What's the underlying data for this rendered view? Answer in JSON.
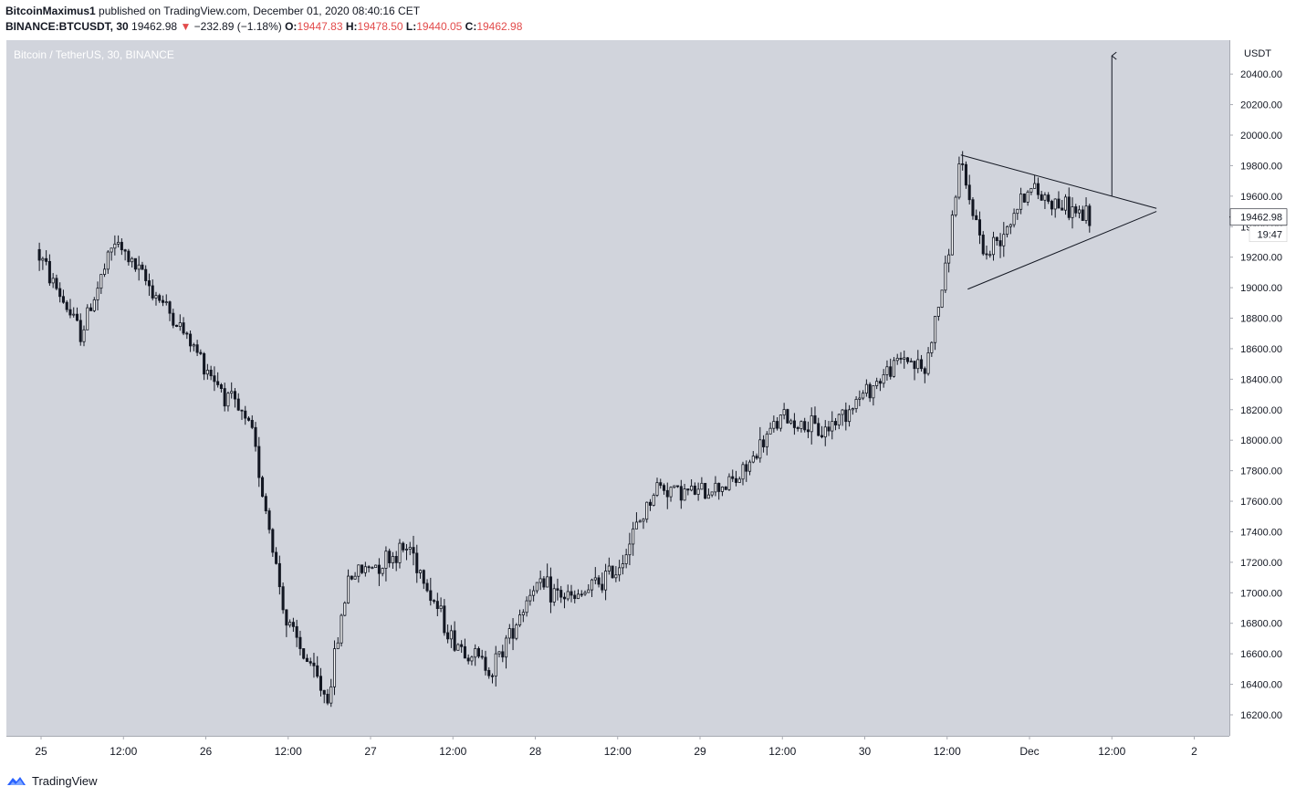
{
  "header": {
    "author": "BitcoinMaximus1",
    "published_text": "published on TradingView.com, December 01, 2020 08:40:16 CET",
    "symbol": "BINANCE:BTCUSDT, 30",
    "last_price": "19462.98",
    "change_arrow": "▼",
    "change": "−232.89 (−1.18%)",
    "open_label": "O:",
    "open": "19447.83",
    "high_label": "H:",
    "high": "19478.50",
    "low_label": "L:",
    "low": "19440.05",
    "close_label": "C:",
    "close": "19462.98"
  },
  "chart_legend": "Bitcoin / TetherUS, 30, BINANCE",
  "price_axis": {
    "unit": "USDT",
    "labels": [
      "20400.00",
      "20200.00",
      "20000.00",
      "19800.00",
      "19600.00",
      "19400.00",
      "19200.00",
      "19000.00",
      "18800.00",
      "18600.00",
      "18400.00",
      "18200.00",
      "18000.00",
      "17800.00",
      "17600.00",
      "17400.00",
      "17200.00",
      "17000.00",
      "16800.00",
      "16600.00",
      "16400.00",
      "16200.00"
    ],
    "current_price_tag": "19462.98",
    "countdown_tag": "19:47"
  },
  "time_axis": {
    "labels": [
      "25",
      "12:00",
      "26",
      "12:00",
      "27",
      "12:00",
      "28",
      "12:00",
      "29",
      "12:00",
      "30",
      "12:00",
      "Dec",
      "12:00",
      "2"
    ]
  },
  "footer": {
    "brand": "TradingView"
  },
  "colors": {
    "chart_bg": "#d1d4dc",
    "candle": "#131722",
    "down_text": "#e24b4b"
  },
  "chart_data": {
    "type": "candlestick",
    "title": "Bitcoin / TetherUS, 30, BINANCE",
    "xlabel": "",
    "ylabel": "USDT",
    "ylim": [
      16060,
      20600
    ],
    "x_ticks": [
      "25",
      "12:00",
      "26",
      "12:00",
      "27",
      "12:00",
      "28",
      "12:00",
      "29",
      "12:00",
      "30",
      "12:00",
      "Dec",
      "12:00",
      "2"
    ],
    "interval": "30 minutes",
    "grid": false,
    "key_points": [
      {
        "time": "Nov 24 23:30",
        "price": 19250
      },
      {
        "time": "Nov 25 06:00",
        "price": 18700
      },
      {
        "time": "Nov 25 11:00",
        "price": 19300
      },
      {
        "time": "Nov 25 18:00",
        "price": 18900
      },
      {
        "time": "Nov 26 07:00",
        "price": 18050
      },
      {
        "time": "Nov 26 12:00",
        "price": 16800
      },
      {
        "time": "Nov 26 18:00",
        "price": 16300
      },
      {
        "time": "Nov 26 21:00",
        "price": 17100
      },
      {
        "time": "Nov 27 06:00",
        "price": 17300
      },
      {
        "time": "Nov 27 12:00",
        "price": 16700
      },
      {
        "time": "Nov 27 18:00",
        "price": 16500
      },
      {
        "time": "Nov 28 00:00",
        "price": 17050
      },
      {
        "time": "Nov 28 06:00",
        "price": 16950
      },
      {
        "time": "Nov 28 12:00",
        "price": 17150
      },
      {
        "time": "Nov 28 18:00",
        "price": 17700
      },
      {
        "time": "Nov 29 00:00",
        "price": 17650
      },
      {
        "time": "Nov 29 06:00",
        "price": 17750
      },
      {
        "time": "Nov 29 12:00",
        "price": 18150
      },
      {
        "time": "Nov 29 18:00",
        "price": 18050
      },
      {
        "time": "Nov 30 00:00",
        "price": 18300
      },
      {
        "time": "Nov 30 06:00",
        "price": 18550
      },
      {
        "time": "Nov 30 09:00",
        "price": 18450
      },
      {
        "time": "Nov 30 12:00",
        "price": 19100
      },
      {
        "time": "Nov 30 14:00",
        "price": 19800
      },
      {
        "time": "Nov 30 18:00",
        "price": 19200
      },
      {
        "time": "Dec 01 00:00",
        "price": 19650
      },
      {
        "time": "Dec 01 08:30",
        "price": 19462.98
      }
    ],
    "drawings": [
      {
        "type": "trendline",
        "name": "triangle upper",
        "from": {
          "time": "Nov 30 14:00",
          "price": 19870
        },
        "to": {
          "time": "Dec 01 18:30",
          "price": 19520
        }
      },
      {
        "type": "trendline",
        "name": "triangle lower",
        "from": {
          "time": "Nov 30 15:00",
          "price": 18990
        },
        "to": {
          "time": "Dec 01 18:30",
          "price": 19500
        }
      },
      {
        "type": "arrow",
        "name": "breakout target",
        "from": {
          "time": "Dec 01 12:00",
          "price": 19600
        },
        "to": {
          "time": "Dec 01 12:00",
          "price": 20520
        }
      }
    ]
  }
}
